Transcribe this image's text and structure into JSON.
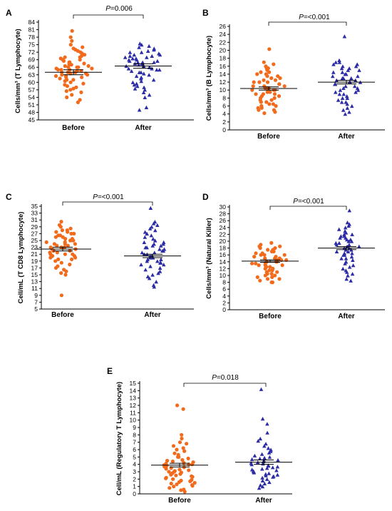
{
  "figure": {
    "panels": [
      {
        "letter": "A",
        "pvalue_italic": "P",
        "pvalue_rest": "=0.006"
      },
      {
        "letter": "B",
        "pvalue_italic": "P",
        "pvalue_rest": "=<0.001"
      },
      {
        "letter": "C",
        "pvalue_italic": "P",
        "pvalue_rest": "=<0.001"
      },
      {
        "letter": "D",
        "pvalue_italic": "P",
        "pvalue_rest": "=<0.001"
      },
      {
        "letter": "E",
        "pvalue_italic": "P",
        "pvalue_rest": "=0.018"
      }
    ]
  },
  "colors": {
    "before": "#f26a1b",
    "after": "#2c2ca6"
  },
  "chart_data": [
    {
      "type": "scatter",
      "panel": "A",
      "ylabel": "Cells/mm³ (T Lymphocyte)",
      "categories": [
        "Before",
        "After"
      ],
      "yticks": [
        45,
        48,
        51,
        54,
        57,
        60,
        63,
        66,
        69,
        72,
        75,
        78,
        81,
        84
      ],
      "ylim": [
        45,
        84
      ],
      "series": [
        {
          "category": "Before",
          "marker": "circle",
          "mean": 64.0,
          "sem": 1.0,
          "values": [
            80.5,
            78,
            76.5,
            75,
            74,
            73.5,
            73,
            72.5,
            72,
            71.5,
            71,
            70.5,
            70,
            70,
            69.5,
            69,
            69,
            68.5,
            68,
            68,
            67.5,
            67.5,
            67,
            67,
            66.5,
            66.5,
            66,
            66,
            66,
            65.5,
            65.5,
            65,
            65,
            65,
            64.5,
            64.5,
            64,
            64,
            64,
            63.5,
            63.5,
            63,
            63,
            62.5,
            62.5,
            62,
            62,
            61.5,
            61,
            61,
            60.5,
            60,
            59.5,
            59,
            58.5,
            58,
            57.5,
            57,
            56.5,
            56,
            55,
            54,
            53,
            52
          ]
        },
        {
          "category": "After",
          "marker": "triangle",
          "mean": 66.5,
          "sem": 0.9,
          "values": [
            75.5,
            75,
            74.5,
            74,
            73.5,
            73,
            72.5,
            72,
            72,
            71.5,
            71,
            71,
            70.5,
            70.5,
            70,
            70,
            69.5,
            69.5,
            69,
            69,
            68.5,
            68.5,
            68,
            68,
            68,
            67.5,
            67.5,
            67,
            67,
            66.5,
            66.5,
            66,
            66,
            65.5,
            65.5,
            65,
            65,
            64.5,
            64,
            64,
            63.5,
            63,
            62.5,
            62,
            61.5,
            61,
            60.5,
            60,
            59.5,
            59,
            58.5,
            58,
            57.5,
            57,
            56,
            55,
            54,
            50,
            49
          ]
        }
      ],
      "pvalue": "P=0.006"
    },
    {
      "type": "scatter",
      "panel": "B",
      "ylabel": "Cells/mm³ (B Lymphocyte)",
      "categories": [
        "Before",
        "After"
      ],
      "yticks": [
        0,
        2,
        4,
        6,
        8,
        10,
        12,
        14,
        16,
        18,
        20,
        22,
        24,
        26
      ],
      "ylim": [
        0,
        26
      ],
      "series": [
        {
          "category": "Before",
          "marker": "circle",
          "mean": 10.4,
          "sem": 0.4,
          "values": [
            20.3,
            17,
            16.5,
            16,
            15.5,
            15.5,
            15,
            14.5,
            14.5,
            14,
            14,
            13.5,
            13.5,
            13,
            13,
            12.5,
            12.5,
            12,
            12,
            12,
            11.5,
            11.5,
            11,
            11,
            11,
            10.5,
            10.5,
            10.5,
            10,
            10,
            10,
            9.5,
            9.5,
            9,
            9,
            9,
            8.5,
            8.5,
            8,
            8,
            7.5,
            7.5,
            7,
            7,
            6.5,
            6.5,
            6,
            6,
            5.5,
            5.5,
            5,
            5,
            4.5,
            4.2
          ]
        },
        {
          "category": "After",
          "marker": "triangle",
          "mean": 12.0,
          "sem": 0.45,
          "values": [
            23.5,
            17.5,
            17,
            17,
            16.5,
            16.5,
            16,
            16,
            15.5,
            15.5,
            15,
            15,
            14.5,
            14.5,
            14,
            14,
            13.5,
            13.5,
            13,
            13,
            13,
            12.5,
            12.5,
            12,
            12,
            12,
            11.5,
            11.5,
            11,
            11,
            10.5,
            10.5,
            10,
            10,
            9.5,
            9.5,
            9,
            9,
            8.5,
            8,
            8,
            7.5,
            7,
            7,
            6.5,
            6,
            5.5,
            5,
            4.5,
            4
          ]
        }
      ],
      "pvalue": "P=<0.001"
    },
    {
      "type": "scatter",
      "panel": "C",
      "ylabel": "Cell/mL (T CD8 Lymphocyte)",
      "categories": [
        "Before",
        "After"
      ],
      "yticks": [
        5,
        7,
        9,
        11,
        13,
        15,
        17,
        19,
        21,
        23,
        25,
        27,
        29,
        31,
        33,
        35
      ],
      "ylim": [
        5,
        35
      ],
      "series": [
        {
          "category": "Before",
          "marker": "circle",
          "mean": 22.5,
          "sem": 0.55,
          "values": [
            30.5,
            29.5,
            29,
            28.5,
            28,
            28,
            27.5,
            27.5,
            27,
            27,
            26.5,
            26.5,
            26,
            26,
            25.5,
            25.5,
            25,
            25,
            25,
            24.5,
            24.5,
            24,
            24,
            24,
            23.5,
            23.5,
            23,
            23,
            23,
            22.5,
            22.5,
            22,
            22,
            22,
            21.5,
            21.5,
            21,
            21,
            21,
            20.5,
            20.5,
            20,
            20,
            19.5,
            19.5,
            19,
            18.5,
            18,
            17.5,
            17,
            16.5,
            16,
            15.5,
            15,
            9
          ]
        },
        {
          "category": "After",
          "marker": "triangle",
          "mean": 20.5,
          "sem": 0.5,
          "values": [
            34.5,
            30.5,
            30,
            29.5,
            29,
            28.5,
            28,
            27.5,
            27,
            26.5,
            26,
            25.5,
            25,
            24.5,
            24.5,
            24,
            24,
            23.5,
            23.5,
            23,
            23,
            22.5,
            22.5,
            22,
            22,
            21.5,
            21.5,
            21,
            21,
            20.5,
            20.5,
            20,
            20,
            19.5,
            19.5,
            19,
            19,
            18.5,
            18.5,
            18,
            18,
            17.5,
            17,
            16.5,
            16,
            15.5,
            15,
            14.5,
            14,
            13,
            12,
            11.5
          ]
        }
      ],
      "pvalue": "P=<0.001"
    },
    {
      "type": "scatter",
      "panel": "D",
      "ylabel": "Cells/mm³ (Natural Killer)",
      "categories": [
        "Before",
        "After"
      ],
      "yticks": [
        0,
        2,
        4,
        6,
        8,
        10,
        12,
        14,
        16,
        18,
        20,
        22,
        24,
        26,
        28,
        30
      ],
      "ylim": [
        0,
        30
      ],
      "series": [
        {
          "category": "Before",
          "marker": "circle",
          "mean": 14.2,
          "sem": 0.35,
          "values": [
            19.5,
            19,
            18.5,
            18.5,
            18,
            18,
            17.5,
            17.5,
            17,
            17,
            16.5,
            16.5,
            16,
            16,
            16,
            15.5,
            15.5,
            15,
            15,
            15,
            14.5,
            14.5,
            14.5,
            14,
            14,
            14,
            13.5,
            13.5,
            13.5,
            13,
            13,
            13,
            12.5,
            12.5,
            12,
            12,
            11.5,
            11.5,
            11,
            11,
            10.5,
            10.5,
            10,
            10,
            9.5,
            9.5,
            9,
            9,
            8.5,
            8,
            8
          ]
        },
        {
          "category": "After",
          "marker": "triangle",
          "mean": 18.0,
          "sem": 0.45,
          "values": [
            29,
            25.5,
            25,
            24.5,
            24,
            23.5,
            23,
            22.5,
            22,
            22,
            21.5,
            21.5,
            21,
            21,
            20.5,
            20.5,
            20,
            20,
            19.5,
            19.5,
            19,
            19,
            18.5,
            18.5,
            18,
            18,
            17.5,
            17.5,
            17,
            17,
            16.5,
            16.5,
            16,
            16,
            15.5,
            15,
            15,
            14.5,
            14,
            14,
            13.5,
            13,
            12.5,
            12,
            11.5,
            11,
            10.5,
            10,
            9,
            8.5
          ]
        }
      ],
      "pvalue": "P=<0.001"
    },
    {
      "type": "scatter",
      "panel": "E",
      "ylabel": "Cell/mL (Regulatory T Lymphocyte)",
      "categories": [
        "Before",
        "After"
      ],
      "yticks": [
        0,
        1,
        2,
        3,
        4,
        5,
        6,
        7,
        8,
        9,
        10,
        11,
        12,
        13,
        14,
        15
      ],
      "ylim": [
        0,
        15
      ],
      "series": [
        {
          "category": "Before",
          "marker": "circle",
          "mean": 3.9,
          "sem": 0.25,
          "values": [
            12,
            11.5,
            8,
            7.5,
            7,
            6.8,
            6.5,
            6.2,
            6,
            5.8,
            5.5,
            5.3,
            5,
            5,
            4.8,
            4.6,
            4.5,
            4.4,
            4.3,
            4.2,
            4.1,
            4,
            4,
            3.9,
            3.8,
            3.7,
            3.6,
            3.5,
            3.4,
            3.3,
            3.2,
            3.1,
            3,
            3,
            2.9,
            2.8,
            2.7,
            2.6,
            2.5,
            2.4,
            2.3,
            2.2,
            2.1,
            2,
            1.9,
            1.8,
            1.7,
            1.6,
            1.5,
            1.4,
            1.3,
            1.2,
            1.1,
            1,
            0.8,
            0.6,
            0.5,
            0.3
          ]
        },
        {
          "category": "After",
          "marker": "triangle",
          "mean": 4.3,
          "sem": 0.3,
          "values": [
            14.2,
            10.2,
            9.5,
            8.3,
            7.5,
            7.2,
            6.8,
            6.5,
            6.2,
            6,
            5.8,
            5.6,
            5.4,
            5.2,
            5,
            4.9,
            4.8,
            4.7,
            4.6,
            4.5,
            4.4,
            4.3,
            4.2,
            4.1,
            4,
            3.9,
            3.8,
            3.7,
            3.6,
            3.5,
            3.4,
            3.3,
            3.2,
            3.1,
            3,
            2.9,
            2.8,
            2.7,
            2.6,
            2.5,
            2.4,
            2.3,
            2.2,
            2,
            1.8,
            1.6,
            1.4,
            1.2,
            1,
            0.8
          ]
        }
      ],
      "pvalue": "P=0.018"
    }
  ]
}
